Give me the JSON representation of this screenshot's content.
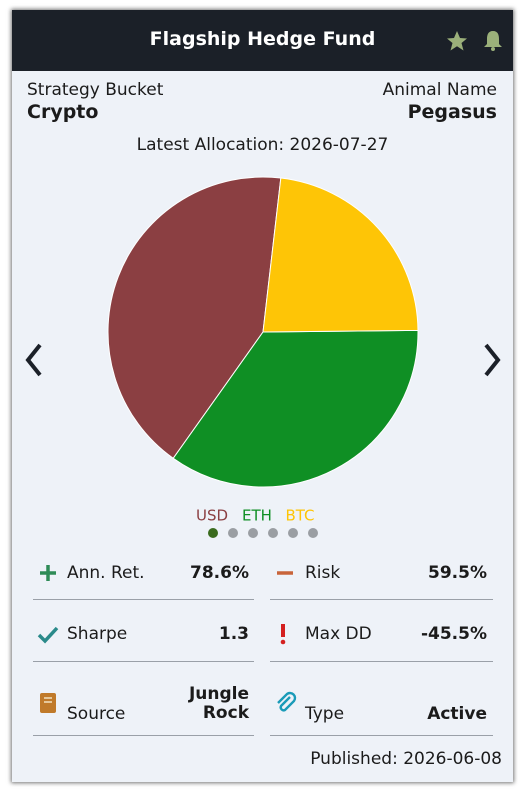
{
  "header": {
    "title": "Flagship Hedge Fund"
  },
  "strategy": {
    "label": "Strategy Bucket",
    "value": "Crypto"
  },
  "animal": {
    "label": "Animal Name",
    "value": "Pegasus"
  },
  "chart_data": {
    "type": "pie",
    "title": "Latest Allocation: 2026-07-27",
    "categories": [
      "USD",
      "ETH",
      "BTC"
    ],
    "values": [
      42,
      35,
      23
    ],
    "colors": [
      "#8b3f42",
      "#0f8f24",
      "#fec506"
    ]
  },
  "metrics": [
    {
      "label": "Ann. Ret.",
      "value": "78.6%"
    },
    {
      "label": "Risk",
      "value": "59.5%"
    },
    {
      "label": "Sharpe",
      "value": "1.3"
    },
    {
      "label": "Max DD",
      "value": "-45.5%"
    },
    {
      "label": "Source",
      "value": "Jungle Rock"
    },
    {
      "label": "Type",
      "value": "Active"
    }
  ],
  "footer": {
    "published": "Published: 2026-06-08"
  }
}
